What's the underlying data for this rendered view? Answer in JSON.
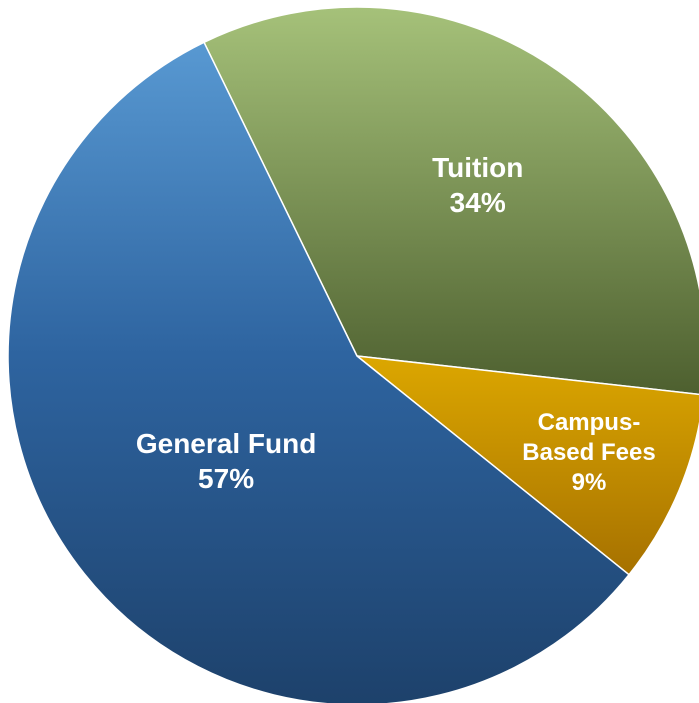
{
  "chart_data": {
    "type": "pie",
    "categories": [
      "Tuition",
      "Campus-Based Fees",
      "General Fund"
    ],
    "values": [
      34,
      9,
      57
    ],
    "value_labels": [
      "34%",
      "9%",
      "57%"
    ],
    "colors": [
      "#7d9a4c",
      "#c58b00",
      "#336ea8"
    ]
  }
}
